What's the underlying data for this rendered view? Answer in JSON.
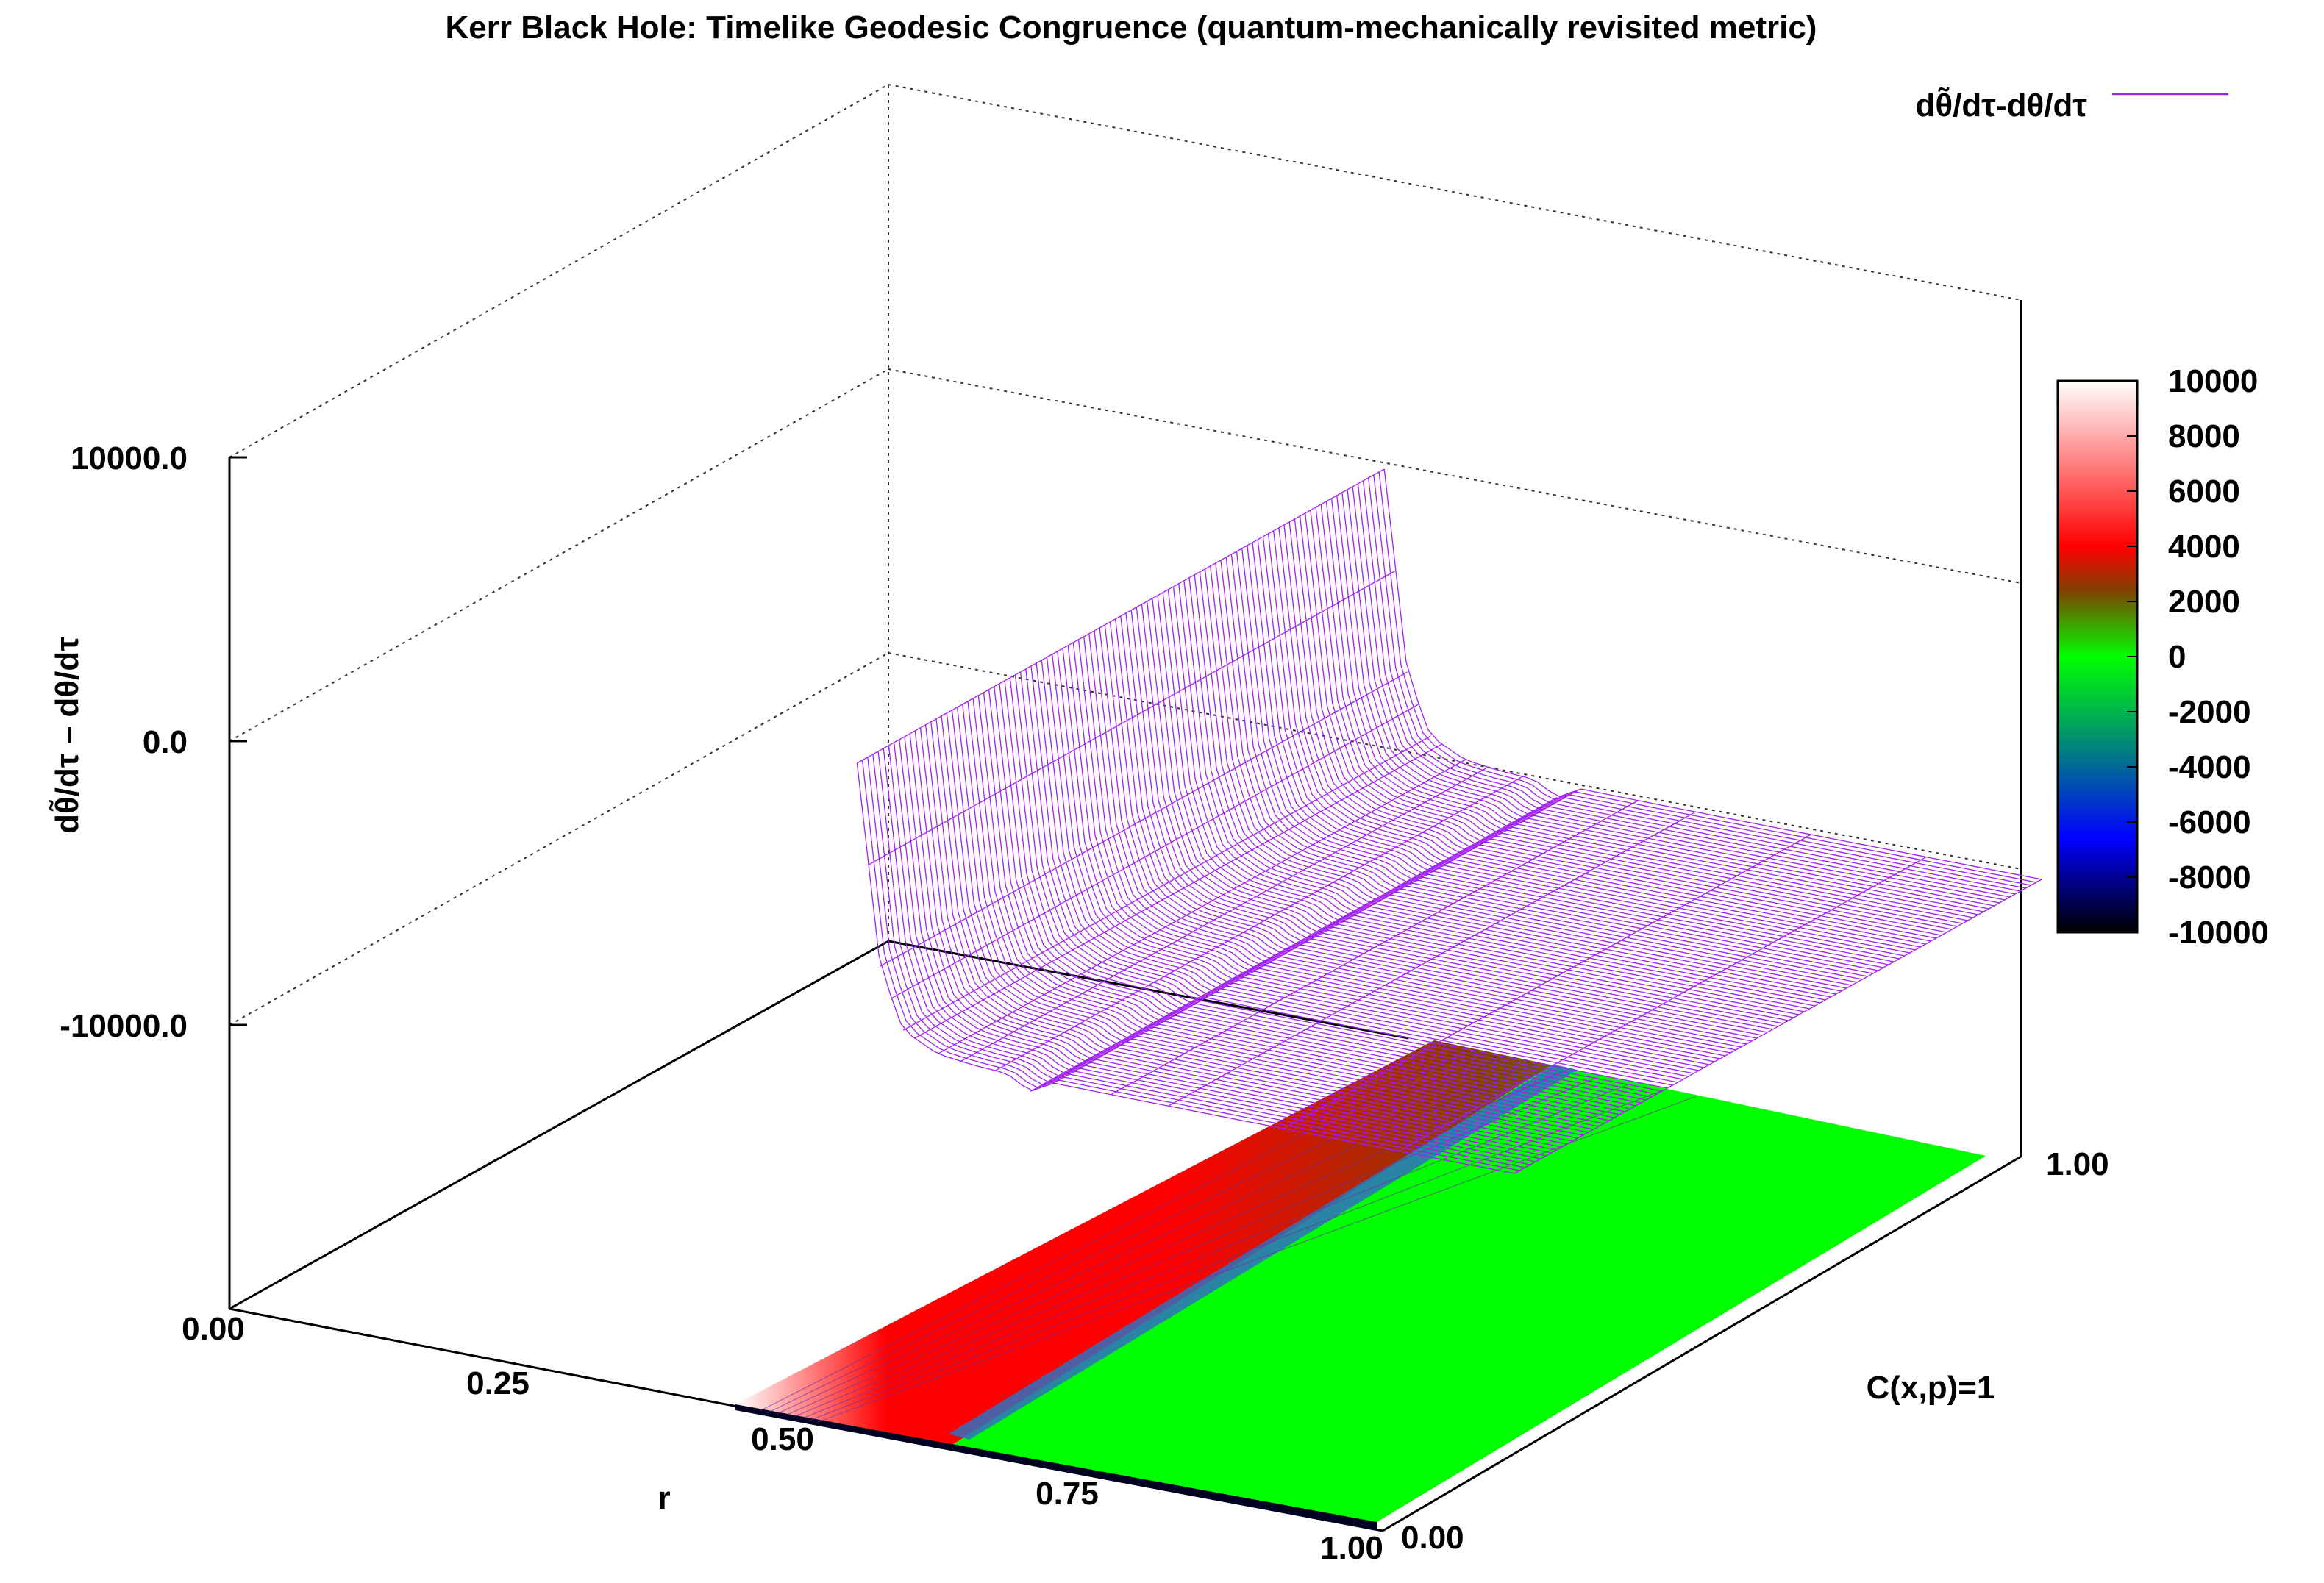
{
  "chart_data": {
    "type": "surface3d",
    "title": "Kerr Black Hole: Timelike Geodesic Congruence (quantum-mechanically revisited metric)",
    "legend": {
      "label": "dθ̃/dτ-dθ/dτ",
      "color": "#a020f0",
      "position": "top-right"
    },
    "axes": {
      "x": {
        "label": "r",
        "ticks": [
          "0.00",
          "0.25",
          "0.50",
          "0.75",
          "1.00"
        ],
        "range": [
          0,
          1
        ]
      },
      "y": {
        "label": "C(x,p)=1",
        "ticks": [
          "0.00",
          "1.00"
        ],
        "range": [
          0,
          1
        ]
      },
      "z": {
        "label": "dθ̃/dτ – dθ/dτ",
        "ticks": [
          "-10000.0",
          "0.0",
          "10000.0"
        ],
        "range": [
          -10000,
          10000
        ]
      }
    },
    "colorbar": {
      "ticks": [
        "10000",
        "8000",
        "6000",
        "4000",
        "2000",
        "0",
        "-2000",
        "-4000",
        "-6000",
        "-8000",
        "-10000"
      ],
      "range": [
        -10000,
        10000
      ],
      "colors": [
        "#000000",
        "#0000ff",
        "#008080",
        "#00ff00",
        "#804000",
        "#ff0000",
        "#ffffff"
      ]
    },
    "surface_profile": {
      "r": [
        0.43,
        0.45,
        0.47,
        0.5,
        0.53,
        0.56,
        0.58,
        0.6,
        0.65,
        0.7,
        0.75,
        0.8,
        0.85,
        0.9,
        1.0
      ],
      "z": [
        10000,
        3000,
        900,
        300,
        150,
        80,
        -400,
        60,
        40,
        30,
        20,
        15,
        10,
        5,
        0
      ],
      "grid_lines_along_c": 100
    }
  }
}
